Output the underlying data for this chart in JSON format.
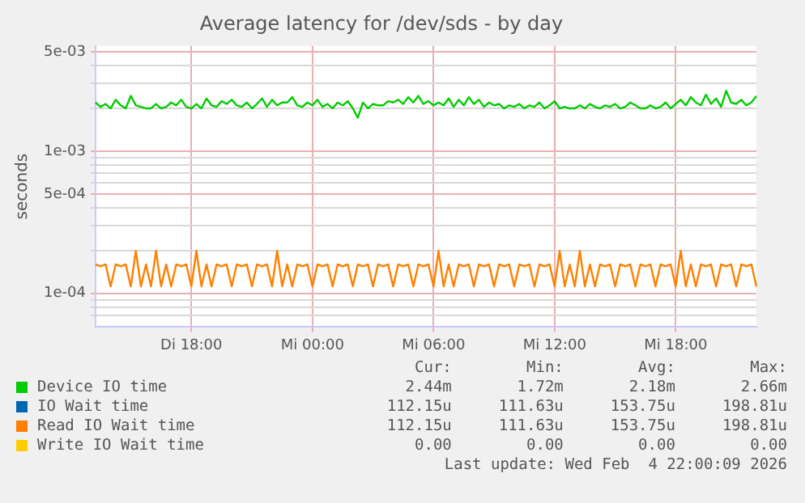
{
  "chart_data": {
    "type": "line",
    "title": "Average latency for /dev/sds - by day",
    "ylabel": "seconds",
    "log": "y",
    "grid": true,
    "legend": "bottom",
    "marker": "none",
    "line_style": "solid",
    "ylim": [
      5.8e-05,
      0.0055
    ],
    "yticks": [
      {
        "value": 7e-05,
        "label": null
      },
      {
        "value": 8e-05,
        "label": null
      },
      {
        "value": 9e-05,
        "label": null
      },
      {
        "value": 0.0001,
        "label": "1e-04"
      },
      {
        "value": 0.0002,
        "label": null
      },
      {
        "value": 0.0003,
        "label": null
      },
      {
        "value": 0.0004,
        "label": null
      },
      {
        "value": 0.0005,
        "label": "5e-04"
      },
      {
        "value": 0.0006,
        "label": null
      },
      {
        "value": 0.0007,
        "label": null
      },
      {
        "value": 0.0008,
        "label": null
      },
      {
        "value": 0.0009,
        "label": null
      },
      {
        "value": 0.001,
        "label": "1e-03"
      },
      {
        "value": 0.002,
        "label": null
      },
      {
        "value": 0.003,
        "label": null
      },
      {
        "value": 0.004,
        "label": null
      },
      {
        "value": 0.005,
        "label": "5e-03"
      }
    ],
    "categories": [
      null,
      null,
      null,
      null,
      null,
      null,
      null,
      null,
      null,
      null,
      null,
      null,
      null,
      null,
      null,
      null,
      null,
      null,
      null,
      "Di 18:00",
      null,
      null,
      null,
      null,
      null,
      null,
      null,
      null,
      null,
      null,
      null,
      null,
      null,
      null,
      null,
      null,
      null,
      null,
      null,
      null,
      null,
      null,
      null,
      "Mi 00:00",
      null,
      null,
      null,
      null,
      null,
      null,
      null,
      null,
      null,
      null,
      null,
      null,
      null,
      null,
      null,
      null,
      null,
      null,
      null,
      null,
      null,
      null,
      null,
      "Mi 06:00",
      null,
      null,
      null,
      null,
      null,
      null,
      null,
      null,
      null,
      null,
      null,
      null,
      null,
      null,
      null,
      null,
      null,
      null,
      null,
      null,
      null,
      null,
      null,
      "Mi 12:00",
      null,
      null,
      null,
      null,
      null,
      null,
      null,
      null,
      null,
      null,
      null,
      null,
      null,
      null,
      null,
      null,
      null,
      null,
      null,
      null,
      null,
      null,
      null,
      "Mi 18:00",
      null,
      null,
      null,
      null,
      null,
      null,
      null,
      null,
      null,
      null,
      null,
      null,
      null,
      null,
      null,
      null
    ],
    "series": [
      {
        "name": "Device IO time",
        "color": "#00cc00",
        "values": [
          0.0022,
          0.00205,
          0.00215,
          0.002,
          0.0023,
          0.0021,
          0.002,
          0.00245,
          0.0021,
          0.00205,
          0.002,
          0.002,
          0.00215,
          0.002,
          0.00205,
          0.0022,
          0.0021,
          0.0023,
          0.00205,
          0.002,
          0.00215,
          0.002,
          0.00235,
          0.0021,
          0.00205,
          0.00225,
          0.00215,
          0.0023,
          0.0021,
          0.00205,
          0.0022,
          0.002,
          0.00215,
          0.00235,
          0.00205,
          0.0023,
          0.0021,
          0.0022,
          0.0022,
          0.0024,
          0.0021,
          0.00205,
          0.0022,
          0.0021,
          0.0023,
          0.00205,
          0.00215,
          0.002,
          0.0022,
          0.0021,
          0.00225,
          0.002,
          0.00172,
          0.0022,
          0.002,
          0.00215,
          0.0021,
          0.0021,
          0.00225,
          0.0022,
          0.0023,
          0.00215,
          0.0024,
          0.0022,
          0.00245,
          0.00215,
          0.00225,
          0.0021,
          0.0022,
          0.0021,
          0.00235,
          0.00205,
          0.0023,
          0.0021,
          0.0024,
          0.00215,
          0.0023,
          0.00205,
          0.0022,
          0.0021,
          0.00215,
          0.002,
          0.0021,
          0.00205,
          0.00215,
          0.002,
          0.0021,
          0.00205,
          0.0022,
          0.002,
          0.0021,
          0.00225,
          0.002,
          0.00205,
          0.002,
          0.002,
          0.0021,
          0.002,
          0.00215,
          0.00205,
          0.002,
          0.0021,
          0.00205,
          0.00215,
          0.002,
          0.00205,
          0.0022,
          0.0021,
          0.002,
          0.002,
          0.0021,
          0.002,
          0.00205,
          0.0022,
          0.002,
          0.00215,
          0.0023,
          0.0021,
          0.0024,
          0.0022,
          0.0021,
          0.0025,
          0.00215,
          0.00235,
          0.00205,
          0.00266,
          0.0022,
          0.00215,
          0.0023,
          0.0021,
          0.0022,
          0.00244
        ]
      },
      {
        "name": "IO Wait time",
        "color": "#0066b3",
        "values": [
          null,
          null,
          null,
          null,
          null,
          null,
          null,
          null,
          null,
          null,
          null,
          null,
          null,
          null,
          null,
          null,
          null,
          null,
          null,
          null,
          null,
          null,
          null,
          null,
          null,
          null,
          null,
          null,
          null,
          null,
          null,
          null,
          null,
          null,
          null,
          null,
          null,
          null,
          null,
          null,
          null,
          null,
          null,
          null,
          null,
          null,
          null,
          null,
          null,
          null,
          null,
          null,
          null,
          null,
          null,
          null,
          null,
          null,
          null,
          null,
          null,
          null,
          null,
          null,
          null,
          null,
          null,
          null,
          null,
          null,
          null,
          null,
          null,
          null,
          null,
          null,
          null,
          null,
          null,
          null,
          null,
          null,
          null,
          null,
          null,
          null,
          null,
          null,
          null,
          null,
          null,
          null,
          null,
          null,
          null,
          null,
          null,
          null,
          null,
          null,
          null,
          null,
          null,
          null,
          null,
          null,
          null,
          null,
          null,
          null,
          null,
          null,
          null,
          null,
          null,
          null,
          null,
          null,
          null,
          null,
          null,
          null,
          null,
          null,
          null,
          null,
          null,
          null,
          null,
          null,
          null,
          null
        ]
      },
      {
        "name": "Read IO Wait time",
        "color": "#ff8000",
        "values": [
          0.00016,
          0.000155,
          0.00016,
          0.000112,
          0.00016,
          0.000155,
          0.00016,
          0.000112,
          0.000199,
          0.000112,
          0.00016,
          0.000112,
          0.000199,
          0.000112,
          0.00016,
          0.000112,
          0.00016,
          0.000155,
          0.00016,
          0.000112,
          0.000199,
          0.000112,
          0.00016,
          0.000112,
          0.00016,
          0.000155,
          0.00016,
          0.000112,
          0.00016,
          0.000155,
          0.00016,
          0.000112,
          0.00016,
          0.000155,
          0.00016,
          0.000112,
          0.000199,
          0.000112,
          0.00016,
          0.000112,
          0.00016,
          0.000155,
          0.00016,
          0.000112,
          0.00016,
          0.000155,
          0.00016,
          0.000112,
          0.00016,
          0.000155,
          0.00016,
          0.000112,
          0.00016,
          0.000155,
          0.00016,
          0.000112,
          0.00016,
          0.000155,
          0.00016,
          0.000112,
          0.00016,
          0.000155,
          0.00016,
          0.000112,
          0.00016,
          0.000155,
          0.00016,
          0.000112,
          0.000199,
          0.000112,
          0.00016,
          0.000112,
          0.00016,
          0.000155,
          0.00016,
          0.000112,
          0.00016,
          0.000155,
          0.00016,
          0.000112,
          0.00016,
          0.000155,
          0.00016,
          0.000112,
          0.00016,
          0.000155,
          0.00016,
          0.000112,
          0.00016,
          0.000155,
          0.00016,
          0.000112,
          0.000199,
          0.000112,
          0.00016,
          0.000112,
          0.000199,
          0.000112,
          0.00016,
          0.000112,
          0.00016,
          0.000155,
          0.00016,
          0.000112,
          0.00016,
          0.000155,
          0.00016,
          0.000112,
          0.00016,
          0.000155,
          0.00016,
          0.000112,
          0.00016,
          0.000155,
          0.00016,
          0.000112,
          0.000199,
          0.000112,
          0.00016,
          0.000112,
          0.00016,
          0.000155,
          0.00016,
          0.000112,
          0.00016,
          0.000155,
          0.00016,
          0.000112,
          0.00016,
          0.000155,
          0.00016,
          0.000112
        ]
      },
      {
        "name": "Write IO Wait time",
        "color": "#ffcc00",
        "values": [
          null,
          null,
          null,
          null,
          null,
          null,
          null,
          null,
          null,
          null,
          null,
          null,
          null,
          null,
          null,
          null,
          null,
          null,
          null,
          null,
          null,
          null,
          null,
          null,
          null,
          null,
          null,
          null,
          null,
          null,
          null,
          null,
          null,
          null,
          null,
          null,
          null,
          null,
          null,
          null,
          null,
          null,
          null,
          null,
          null,
          null,
          null,
          null,
          null,
          null,
          null,
          null,
          null,
          null,
          null,
          null,
          null,
          null,
          null,
          null,
          null,
          null,
          null,
          null,
          null,
          null,
          null,
          null,
          null,
          null,
          null,
          null,
          null,
          null,
          null,
          null,
          null,
          null,
          null,
          null,
          null,
          null,
          null,
          null,
          null,
          null,
          null,
          null,
          null,
          null,
          null,
          null,
          null,
          null,
          null,
          null,
          null,
          null,
          null,
          null,
          null,
          null,
          null,
          null,
          null,
          null,
          null,
          null,
          null,
          null,
          null,
          null,
          null,
          null,
          null,
          null,
          null,
          null,
          null,
          null,
          null,
          null,
          null,
          null,
          null,
          null,
          null,
          null,
          null,
          null,
          null,
          null
        ]
      }
    ],
    "annotations": [
      "Cur:",
      "Min:",
      "Avg:",
      "Max:",
      "2.44m",
      "1.72m",
      "2.18m",
      "2.66m",
      "112.15u",
      "111.63u",
      "153.75u",
      "198.81u",
      "112.15u",
      "111.63u",
      "153.75u",
      "198.81u",
      "0.00",
      "0.00",
      "0.00",
      "0.00",
      "Last update: Wed Feb  4 22:00:09 2026"
    ]
  }
}
